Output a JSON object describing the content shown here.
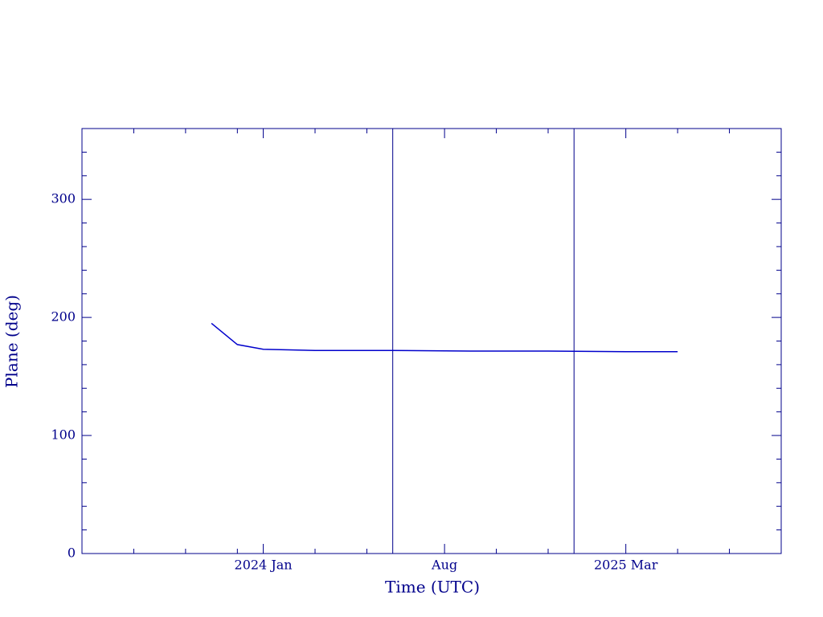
{
  "chart_data": {
    "type": "line",
    "xlabel": "Time (UTC)",
    "ylabel": "Plane (deg)",
    "xlim": [
      "2023-06",
      "2025-09"
    ],
    "xticks": [
      {
        "value": "2024-01",
        "label": "2024 Jan"
      },
      {
        "value": "2024-08",
        "label": "Aug"
      },
      {
        "value": "2025-03",
        "label": "2025 Mar"
      }
    ],
    "xminorticks": [
      "2023-08",
      "2023-10",
      "2023-12",
      "2024-03",
      "2024-05",
      "2024-10",
      "2024-12",
      "2025-05",
      "2025-07"
    ],
    "ylim": [
      0,
      360
    ],
    "yticks": [
      0,
      100,
      200,
      300
    ],
    "yminorticks": [
      20,
      40,
      60,
      80,
      120,
      140,
      160,
      180,
      220,
      240,
      260,
      280,
      320,
      340
    ],
    "vlines": [
      "2024-06",
      "2025-01"
    ],
    "axis_color": "#00008b",
    "series": [
      {
        "color": "#0000cc",
        "x": [
          "2023-11",
          "2023-12",
          "2024-01",
          "2024-03",
          "2024-06",
          "2024-09",
          "2024-12",
          "2025-03",
          "2025-05"
        ],
        "values": [
          195,
          177,
          173,
          172,
          172,
          171.5,
          171.5,
          171,
          171
        ]
      }
    ]
  }
}
